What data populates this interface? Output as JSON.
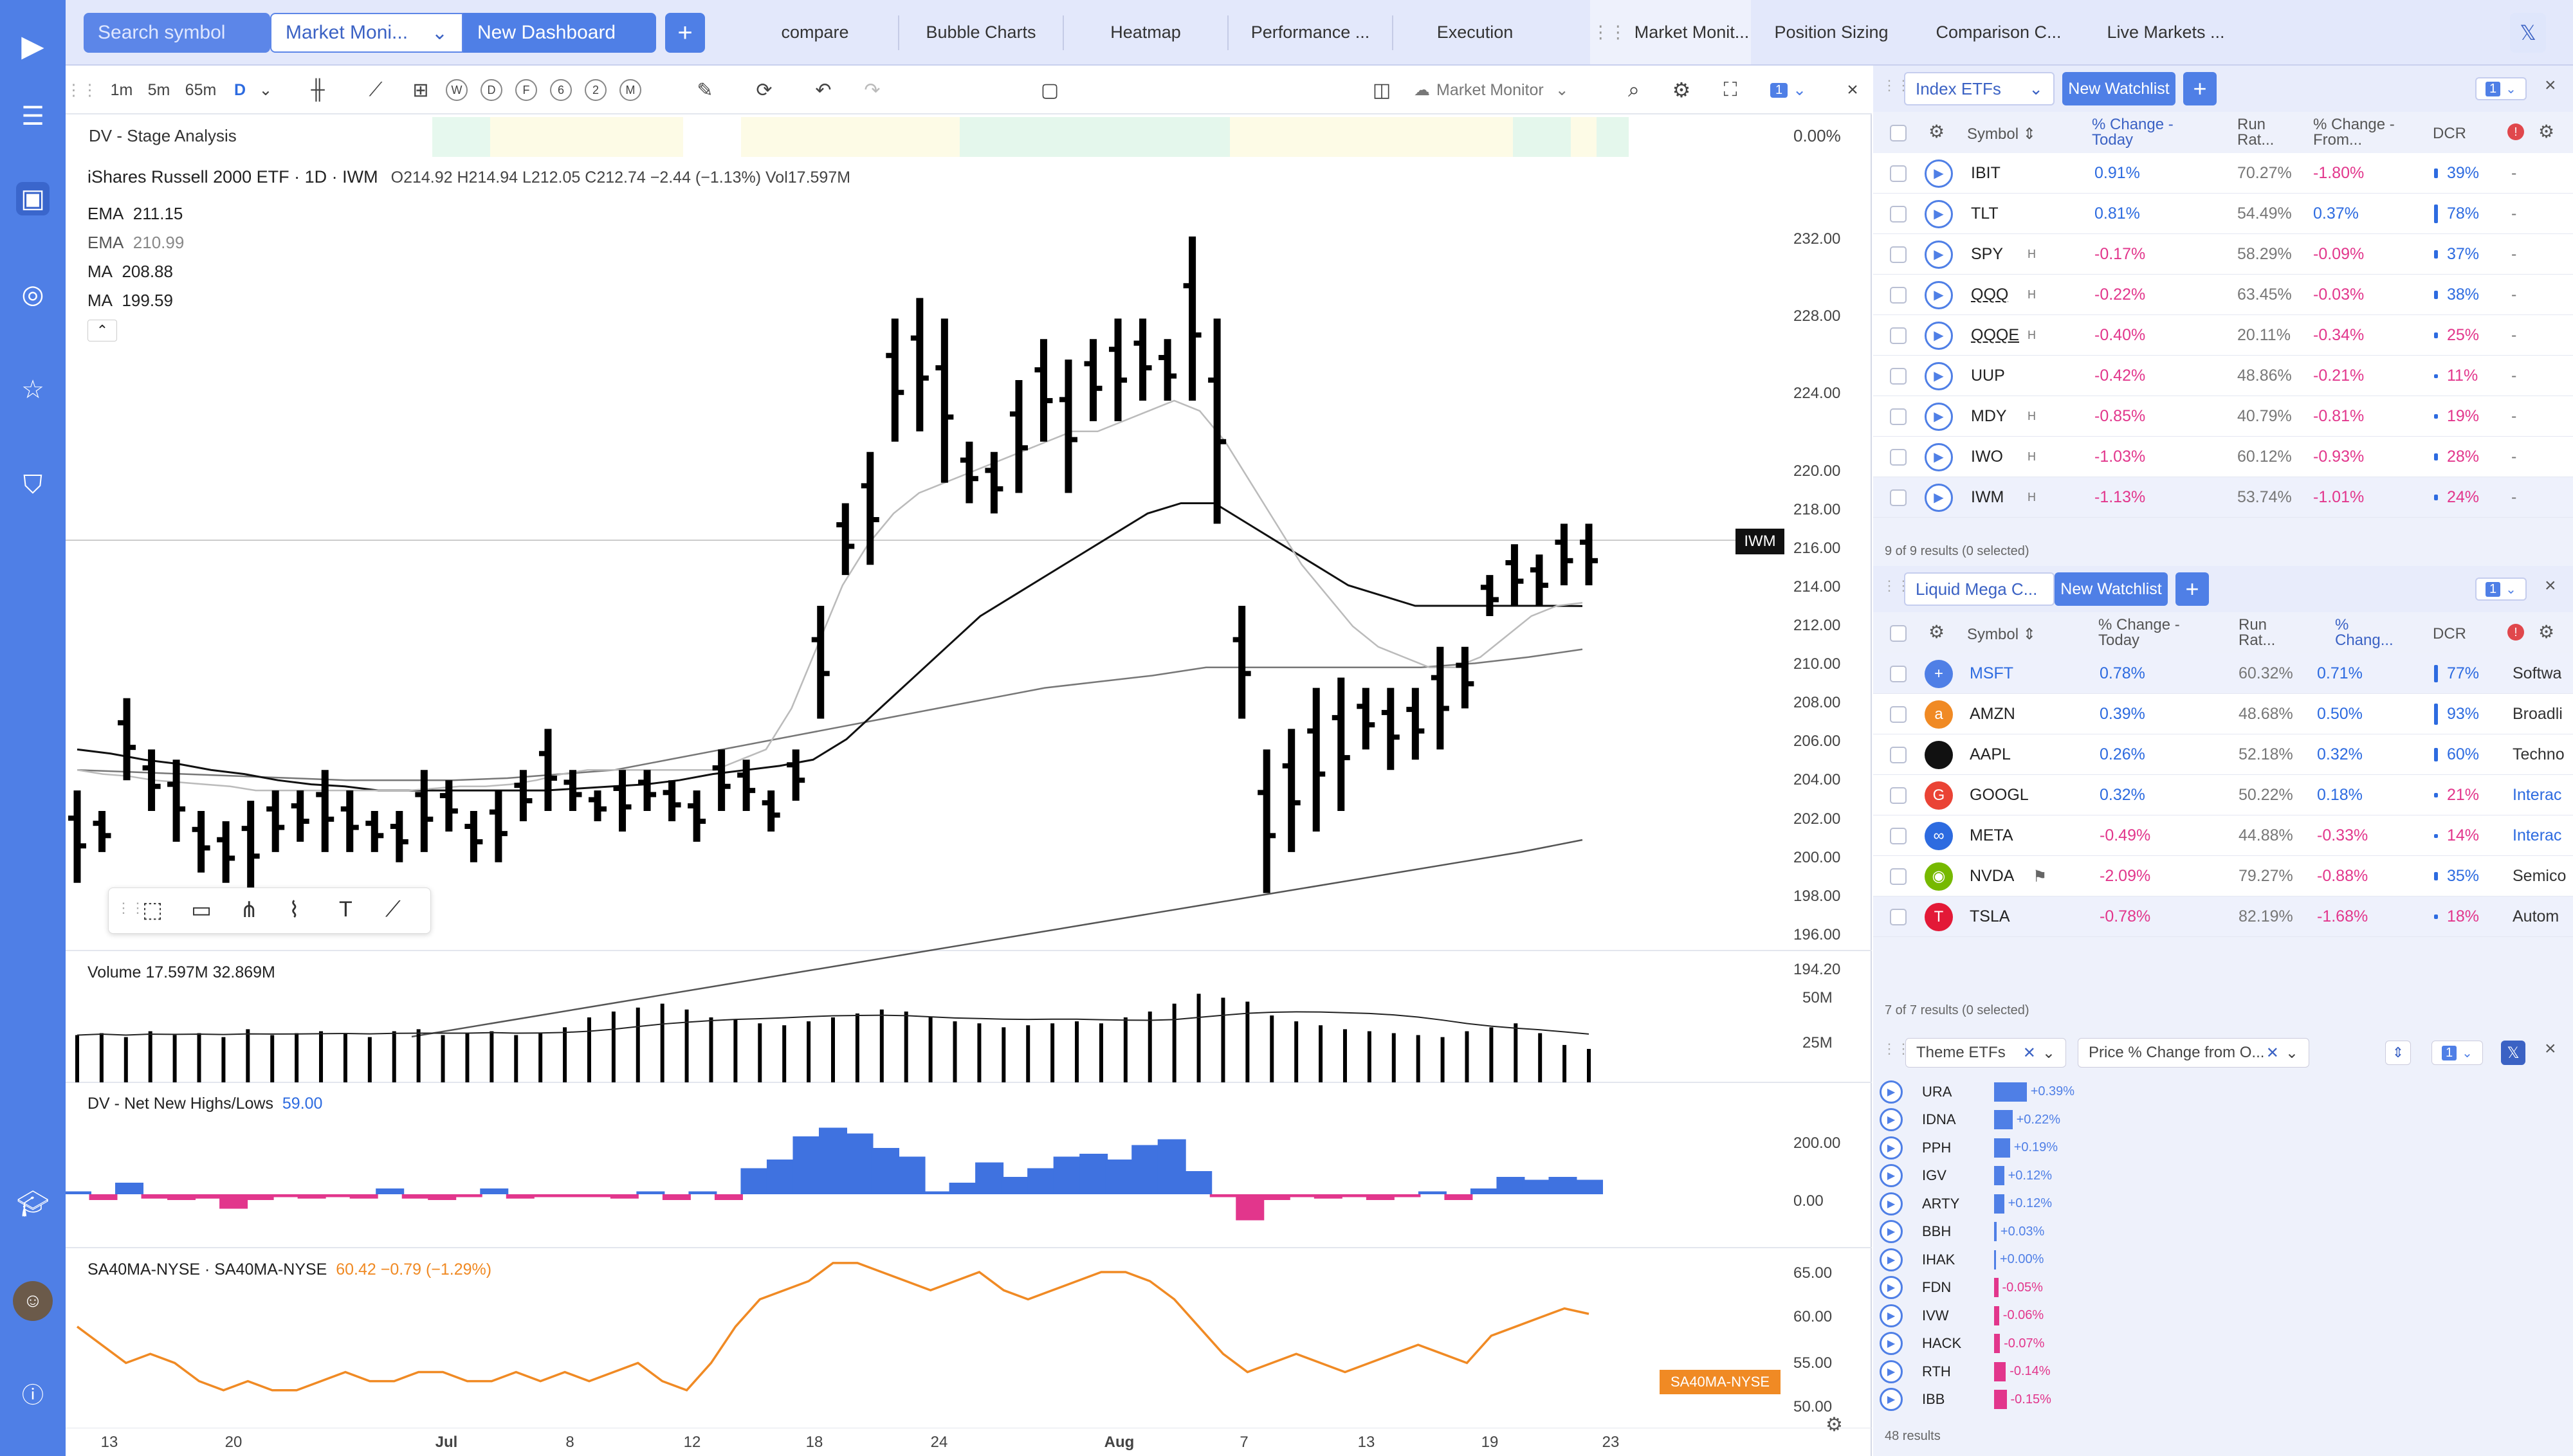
{
  "topbar": {
    "search_placeholder": "Search symbol",
    "layout_selector": "Market Moni...",
    "new_dashboard": "New Dashboard",
    "tabs": [
      "compare",
      "Bubble Charts",
      "Heatmap",
      "Performance ...",
      "Execution",
      "Market Monit...",
      "Position Sizing",
      "Comparison C...",
      "Live Markets ..."
    ],
    "accent": "#4f7fe6"
  },
  "chart_toolbar": {
    "intervals": [
      "1m",
      "5m",
      "65m",
      "D"
    ],
    "periods": [
      "W",
      "D",
      "F",
      "6",
      "2",
      "M"
    ],
    "layout_name": "Market Monitor",
    "sync_badge": "1"
  },
  "stage_analysis": {
    "label": "DV - Stage Analysis",
    "value": "0.00%"
  },
  "price_pane": {
    "title": "iShares Russell 2000 ETF · 1D · IWM",
    "ohlc": "O214.92  H214.94  L212.05  C212.74  −2.44 (−1.13%)  Vol17.597M",
    "indicators": [
      {
        "name": "EMA",
        "value": "211.15"
      },
      {
        "name": "EMA",
        "value": "210.99"
      },
      {
        "name": "MA",
        "value": "208.88"
      },
      {
        "name": "MA",
        "value": "199.59"
      }
    ],
    "y_ticks": [
      "232.00",
      "228.00",
      "224.00",
      "220.00",
      "218.00",
      "216.00",
      "214.00",
      "212.00",
      "210.00",
      "208.00",
      "206.00",
      "204.00",
      "202.00",
      "200.00",
      "198.00",
      "196.00",
      "194.20"
    ],
    "symbol_tag": "IWM"
  },
  "volume_pane": {
    "label": "Volume  17.597M  32.869M",
    "y_ticks": [
      "50M",
      "25M"
    ]
  },
  "nnhl_pane": {
    "label": "DV - Net New Highs/Lows",
    "value": "59.00",
    "y_ticks": [
      "200.00",
      "0.00"
    ]
  },
  "sa40_pane": {
    "label": "SA40MA-NYSE · SA40MA-NYSE",
    "value": "60.42  −0.79 (−1.29%)",
    "tag": "SA40MA-NYSE",
    "y_ticks": [
      "65.00",
      "60.00",
      "55.00",
      "50.00"
    ]
  },
  "x_axis": [
    "13",
    "20",
    "Jul",
    "8",
    "12",
    "18",
    "24",
    "Aug",
    "7",
    "13",
    "19",
    "23"
  ],
  "chart_data": [
    {
      "type": "ohlc",
      "title": "iShares Russell 2000 ETF · 1D · IWM",
      "ylim": [
        194.2,
        232
      ],
      "bars": [
        [
          202,
          197.5
        ],
        [
          201,
          199
        ],
        [
          206.5,
          202.5
        ],
        [
          204,
          201
        ],
        [
          203.5,
          199.5
        ],
        [
          201,
          198
        ],
        [
          200.5,
          197.5
        ],
        [
          201.5,
          197
        ],
        [
          202,
          199
        ],
        [
          202,
          199.5
        ],
        [
          203,
          199
        ],
        [
          202,
          199
        ],
        [
          201,
          199
        ],
        [
          201,
          198.5
        ],
        [
          203,
          199
        ],
        [
          202.5,
          200
        ],
        [
          201,
          198.5
        ],
        [
          202,
          198.5
        ],
        [
          203,
          200.5
        ],
        [
          205,
          201
        ],
        [
          203,
          201
        ],
        [
          202,
          200.5
        ],
        [
          203,
          200
        ],
        [
          203,
          201
        ],
        [
          202.5,
          200.5
        ],
        [
          202,
          199.5
        ],
        [
          204,
          201
        ],
        [
          203.5,
          201
        ],
        [
          202,
          200
        ],
        [
          204,
          201.5
        ],
        [
          211,
          205.5
        ],
        [
          216,
          212.5
        ],
        [
          218.5,
          213
        ],
        [
          225,
          219
        ],
        [
          226,
          219.5
        ],
        [
          225,
          217
        ],
        [
          219,
          216
        ],
        [
          218.5,
          215.5
        ],
        [
          222,
          216.5
        ],
        [
          224,
          219
        ],
        [
          223,
          216.5
        ],
        [
          224,
          220
        ],
        [
          225,
          220
        ],
        [
          225,
          221
        ],
        [
          224,
          221
        ],
        [
          229,
          221
        ],
        [
          225,
          215
        ],
        [
          211,
          205.5
        ],
        [
          204,
          197
        ],
        [
          205,
          199
        ],
        [
          207,
          200
        ],
        [
          207.5,
          201
        ],
        [
          207,
          204
        ],
        [
          207,
          203
        ],
        [
          207,
          203.5
        ],
        [
          209,
          204
        ],
        [
          209,
          206
        ],
        [
          212.5,
          210.5
        ],
        [
          214,
          211
        ],
        [
          213.5,
          211
        ],
        [
          215,
          212
        ],
        [
          215,
          212
        ]
      ],
      "ema_fast": [
        203,
        202.8,
        202.7,
        202.5,
        202.4,
        202.3,
        202.2,
        202,
        202,
        202,
        202,
        202,
        202,
        202,
        202.1,
        202.2,
        202.2,
        202.3,
        202.5,
        202.8,
        203,
        203,
        203,
        203,
        203,
        203,
        203.5,
        204,
        206,
        209,
        212,
        214,
        215.5,
        216.5,
        217,
        217.5,
        218,
        218.5,
        219,
        219.5,
        219.5,
        220,
        220.5,
        221,
        220.5,
        219,
        217,
        215,
        213,
        211.5,
        210,
        209,
        208.5,
        208,
        208,
        208.5,
        209.5,
        210.5,
        211,
        211.15
      ],
      "ema_slow": [
        204,
        203.8,
        203.5,
        203.3,
        203,
        202.8,
        202.5,
        202.3,
        202.2,
        202,
        202,
        202,
        202,
        202,
        202,
        202.1,
        202.2,
        202.3,
        202.5,
        202.8,
        203,
        203.2,
        203.5,
        204.5,
        206,
        207.5,
        209,
        210.5,
        211.5,
        212.5,
        213.5,
        214.5,
        215.5,
        216,
        216,
        215,
        214,
        213,
        212,
        211.5,
        211,
        211,
        211,
        211,
        211,
        210.99
      ],
      "ma_mid": [
        203,
        202.9,
        202.8,
        202.7,
        202.6,
        202.5,
        202.5,
        202.5,
        202.6,
        202.8,
        203,
        203.5,
        204,
        204.5,
        205,
        205.5,
        206,
        206.5,
        207,
        207.3,
        207.6,
        208,
        208,
        208,
        208,
        208,
        208.2,
        208.5,
        208.88
      ],
      "ma_long": [
        190,
        190.5,
        191,
        191.5,
        192,
        192.5,
        193,
        193.5,
        194,
        194.5,
        195,
        195.5,
        196,
        196.5,
        197,
        197.5,
        198,
        198.5,
        199,
        199.59
      ]
    },
    {
      "type": "bar",
      "title": "Volume",
      "values": [
        24,
        25,
        23,
        26,
        24,
        25,
        23,
        27,
        24,
        25,
        26,
        25,
        23,
        26,
        27,
        24,
        25,
        26,
        24,
        25,
        28,
        33,
        36,
        38,
        40,
        37,
        33,
        32,
        30,
        29,
        31,
        33,
        35,
        37,
        36,
        33,
        31,
        30,
        28,
        29,
        30,
        31,
        30,
        33,
        36,
        40,
        45,
        43,
        41,
        34,
        31,
        29,
        27,
        26,
        25,
        24,
        23,
        26,
        28,
        30,
        25,
        19,
        17
      ]
    },
    {
      "type": "bar",
      "title": "DV - Net New Highs/Lows",
      "ylim": [
        -100,
        300
      ],
      "values": [
        10,
        -20,
        40,
        -15,
        -20,
        -15,
        -50,
        -20,
        -10,
        -15,
        -10,
        -15,
        20,
        -15,
        -20,
        -10,
        20,
        -15,
        -10,
        -10,
        -10,
        -15,
        10,
        -20,
        10,
        -20,
        90,
        120,
        200,
        230,
        210,
        160,
        130,
        10,
        40,
        110,
        60,
        90,
        130,
        140,
        120,
        170,
        190,
        80,
        -10,
        -90,
        -20,
        -10,
        -15,
        -10,
        -20,
        -10,
        10,
        -20,
        20,
        60,
        50,
        60,
        50
      ]
    },
    {
      "type": "line",
      "title": "SA40MA-NYSE",
      "ylim": [
        50,
        65
      ],
      "values": [
        59,
        57,
        55,
        56,
        55,
        53,
        52,
        53,
        52,
        52,
        53,
        54,
        53,
        53,
        54,
        54,
        53,
        53,
        54,
        53,
        54,
        53,
        54,
        55,
        53,
        52,
        55,
        59,
        62,
        63,
        64,
        66,
        66,
        65,
        64,
        63,
        64,
        65,
        63,
        62,
        63,
        64,
        65,
        65,
        64,
        62,
        59,
        56,
        54,
        55,
        56,
        55,
        54,
        55,
        56,
        57,
        56,
        55,
        58,
        59,
        60,
        61,
        60.4
      ]
    }
  ],
  "watchlist1": {
    "name": "Index ETFs",
    "new_watchlist": "New Watchlist",
    "badge": "1",
    "cols": [
      "Symbol",
      "% Change - Today",
      "Run Rat...",
      "% Change - From...",
      "DCR"
    ],
    "rows": [
      {
        "sym": "IBIT",
        "h": "",
        "chg": "0.91%",
        "run": "70.27%",
        "from": "-1.80%",
        "dcr": "39%",
        "dcrv": 0.39
      },
      {
        "sym": "TLT",
        "h": "",
        "chg": "0.81%",
        "run": "54.49%",
        "from": "0.37%",
        "dcr": "78%",
        "dcrv": 0.78
      },
      {
        "sym": "SPY",
        "h": "H",
        "chg": "-0.17%",
        "run": "58.29%",
        "from": "-0.09%",
        "dcr": "37%",
        "dcrv": 0.37
      },
      {
        "sym": "QQQ",
        "h": "H",
        "chg": "-0.22%",
        "run": "63.45%",
        "from": "-0.03%",
        "dcr": "38%",
        "dcrv": 0.38
      },
      {
        "sym": "QQQE",
        "h": "H",
        "chg": "-0.40%",
        "run": "20.11%",
        "from": "-0.34%",
        "dcr": "25%",
        "dcrv": 0.25
      },
      {
        "sym": "UUP",
        "h": "",
        "chg": "-0.42%",
        "run": "48.86%",
        "from": "-0.21%",
        "dcr": "11%",
        "dcrv": 0.11
      },
      {
        "sym": "MDY",
        "h": "H",
        "chg": "-0.85%",
        "run": "40.79%",
        "from": "-0.81%",
        "dcr": "19%",
        "dcrv": 0.19
      },
      {
        "sym": "IWO",
        "h": "H",
        "chg": "-1.03%",
        "run": "60.12%",
        "from": "-0.93%",
        "dcr": "28%",
        "dcrv": 0.28
      },
      {
        "sym": "IWM",
        "h": "H",
        "chg": "-1.13%",
        "run": "53.74%",
        "from": "-1.01%",
        "dcr": "24%",
        "dcrv": 0.24
      }
    ],
    "footer": "9 of 9 results (0 selected)"
  },
  "watchlist2": {
    "name": "Liquid Mega C...",
    "new_watchlist": "New Watchlist",
    "badge": "1",
    "cols": [
      "Symbol",
      "% Change - Today",
      "Run Rat...",
      "% Chang...",
      "DCR"
    ],
    "rows": [
      {
        "sym": "MSFT",
        "chg": "0.78%",
        "run": "60.32%",
        "from": "0.71%",
        "dcr": "77%",
        "dcrv": 0.77,
        "ind": "Softwa",
        "logo": "+",
        "logocolor": "#4f7fe6"
      },
      {
        "sym": "AMZN",
        "chg": "0.39%",
        "run": "48.68%",
        "from": "0.50%",
        "dcr": "93%",
        "dcrv": 0.93,
        "ind": "Broadli",
        "logo": "a",
        "logocolor": "#f08a24"
      },
      {
        "sym": "AAPL",
        "chg": "0.26%",
        "run": "52.18%",
        "from": "0.32%",
        "dcr": "60%",
        "dcrv": 0.6,
        "ind": "Techno",
        "logo": "",
        "logocolor": "#111"
      },
      {
        "sym": "GOOGL",
        "chg": "0.32%",
        "run": "50.22%",
        "from": "0.18%",
        "dcr": "21%",
        "dcrv": 0.21,
        "ind": "Interac",
        "logo": "G",
        "logocolor": "#ea4335"
      },
      {
        "sym": "META",
        "chg": "-0.49%",
        "run": "44.88%",
        "from": "-0.33%",
        "dcr": "14%",
        "dcrv": 0.14,
        "ind": "Interac",
        "logo": "∞",
        "logocolor": "#2d6be0"
      },
      {
        "sym": "NVDA",
        "chg": "-2.09%",
        "run": "79.27%",
        "from": "-0.88%",
        "dcr": "35%",
        "dcrv": 0.35,
        "ind": "Semico",
        "logo": "◉",
        "logocolor": "#76b900"
      },
      {
        "sym": "TSLA",
        "chg": "-0.78%",
        "run": "82.19%",
        "from": "-1.68%",
        "dcr": "18%",
        "dcrv": 0.18,
        "ind": "Autom",
        "logo": "T",
        "logocolor": "#e31937"
      }
    ],
    "footer": "7 of 7 results (0 selected)"
  },
  "themes": {
    "filter1": "Theme ETFs",
    "filter2": "Price % Change from O...",
    "badge": "1",
    "rows": [
      {
        "sym": "URA",
        "label": "+0.39%",
        "v": 0.39
      },
      {
        "sym": "IDNA",
        "label": "+0.22%",
        "v": 0.22
      },
      {
        "sym": "PPH",
        "label": "+0.19%",
        "v": 0.19
      },
      {
        "sym": "IGV",
        "label": "+0.12%",
        "v": 0.12
      },
      {
        "sym": "ARTY",
        "label": "+0.12%",
        "v": 0.12
      },
      {
        "sym": "BBH",
        "label": "+0.03%",
        "v": 0.03
      },
      {
        "sym": "IHAK",
        "label": "+0.00%",
        "v": 0.0
      },
      {
        "sym": "FDN",
        "label": "-0.05%",
        "v": -0.05
      },
      {
        "sym": "IVW",
        "label": "-0.06%",
        "v": -0.06
      },
      {
        "sym": "HACK",
        "label": "-0.07%",
        "v": -0.07
      },
      {
        "sym": "RTH",
        "label": "-0.14%",
        "v": -0.14
      },
      {
        "sym": "IBB",
        "label": "-0.15%",
        "v": -0.15
      }
    ],
    "footer": "48 results"
  }
}
